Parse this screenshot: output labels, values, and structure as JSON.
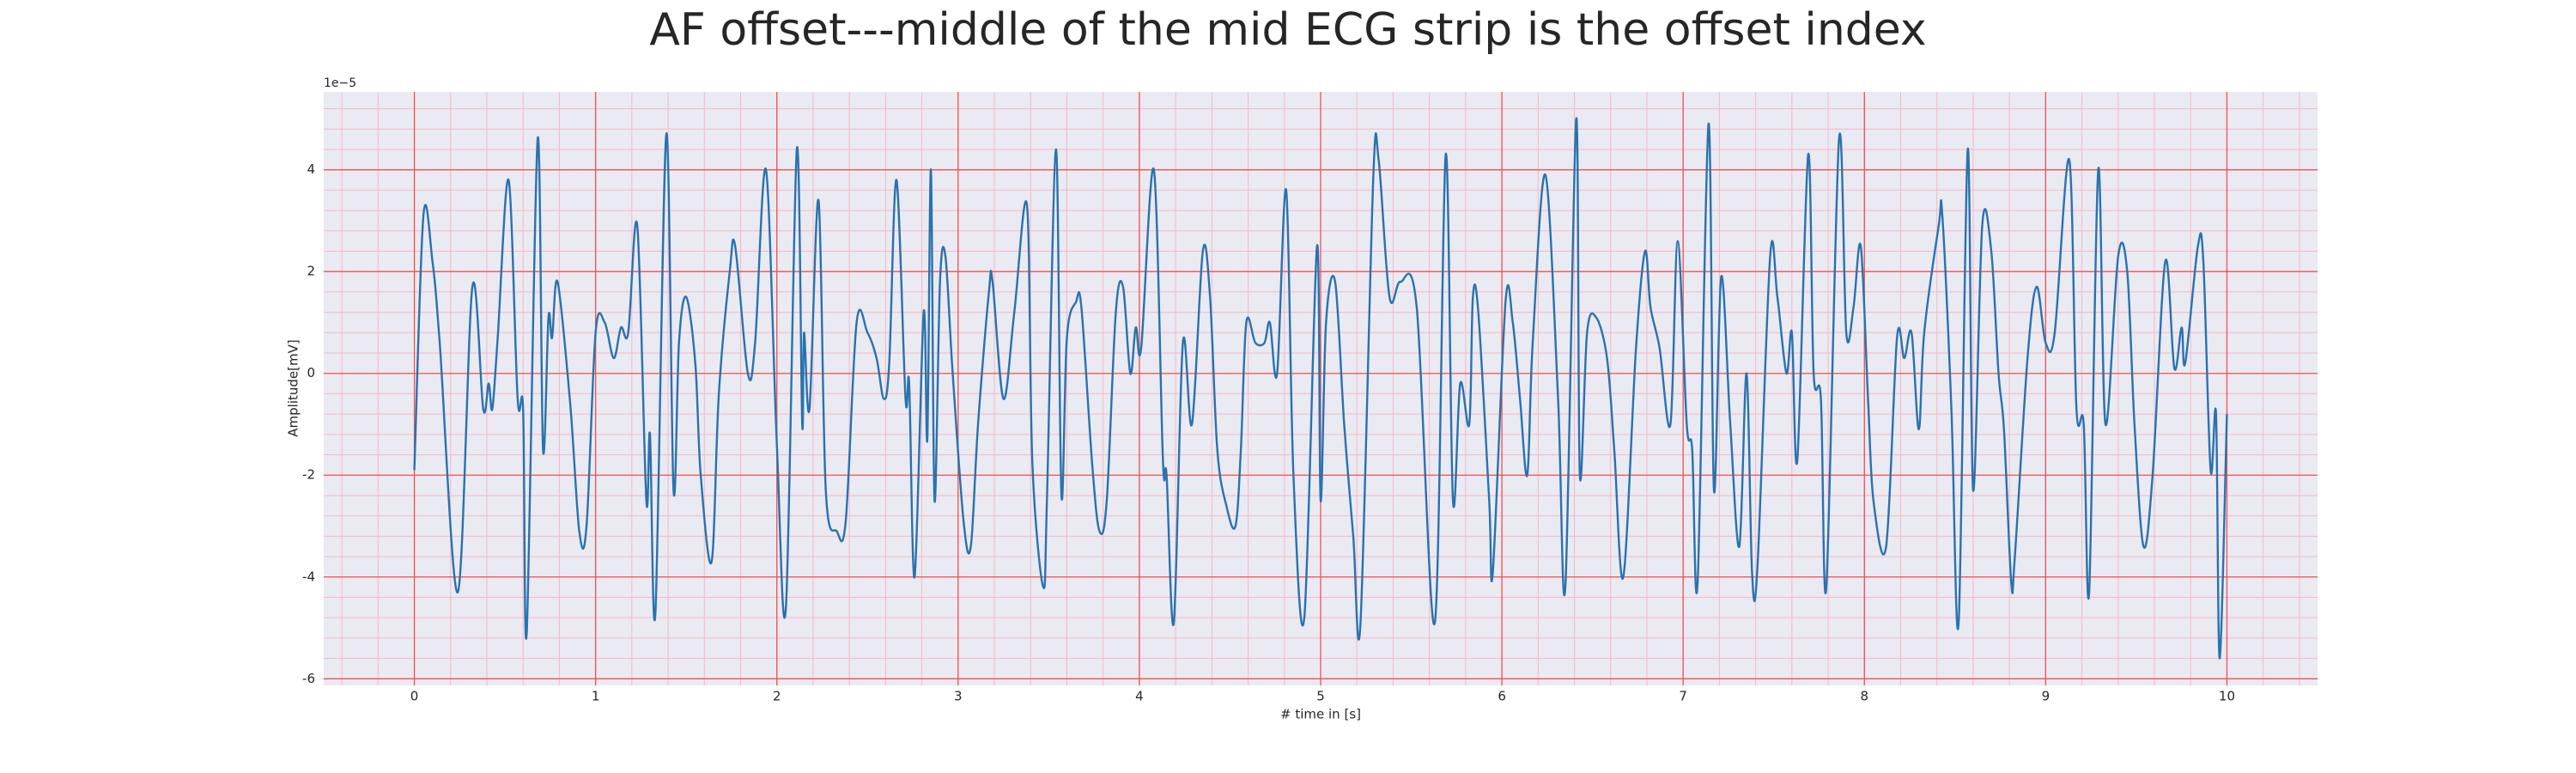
{
  "chart_data": {
    "type": "line",
    "title": "AF offset---middle of the mid ECG strip is the offset index",
    "x_label": "# time in [s]",
    "y_label": "Amplitude[mV]",
    "y_offset_label": "1e−5",
    "color": "#2a72ad",
    "xlim": [
      -0.5,
      10.5
    ],
    "ylim": [
      -6.13,
      5.53
    ],
    "xticks": [
      0,
      1,
      2,
      3,
      4,
      5,
      6,
      7,
      8,
      9,
      10
    ],
    "yticks": [
      -6,
      -4,
      -2,
      0,
      2,
      4
    ],
    "grid": true,
    "minor_grid_divisions": 5,
    "x": [
      0,
      0.05,
      0.1,
      0.14,
      0.24,
      0.32,
      0.38,
      0.41,
      0.43,
      0.46,
      0.52,
      0.57,
      0.6,
      0.62,
      0.68,
      0.71,
      0.74,
      0.76,
      0.79,
      0.86,
      0.91,
      0.95,
      1.0,
      1.05,
      1.1,
      1.14,
      1.18,
      1.23,
      1.28,
      1.3,
      1.33,
      1.39,
      1.43,
      1.46,
      1.5,
      1.55,
      1.58,
      1.64,
      1.68,
      1.74,
      1.77,
      1.84,
      1.88,
      1.94,
      2.0,
      2.05,
      2.11,
      2.14,
      2.15,
      2.18,
      2.23,
      2.27,
      2.33,
      2.38,
      2.44,
      2.5,
      2.55,
      2.59,
      2.62,
      2.66,
      2.71,
      2.73,
      2.76,
      2.81,
      2.83,
      2.85,
      2.87,
      2.9,
      2.93,
      2.97,
      3.03,
      3.07,
      3.11,
      3.17,
      3.19,
      3.25,
      3.31,
      3.38,
      3.41,
      3.47,
      3.49,
      3.54,
      3.57,
      3.6,
      3.65,
      3.68,
      3.74,
      3.78,
      3.82,
      3.87,
      3.91,
      3.95,
      3.98,
      4.01,
      4.08,
      4.13,
      4.15,
      4.19,
      4.24,
      4.29,
      4.35,
      4.39,
      4.43,
      4.48,
      4.53,
      4.56,
      4.59,
      4.64,
      4.69,
      4.72,
      4.76,
      4.81,
      4.85,
      4.91,
      4.98,
      5.0,
      5.03,
      5.08,
      5.13,
      5.18,
      5.22,
      5.29,
      5.32,
      5.38,
      5.44,
      5.53,
      5.63,
      5.69,
      5.73,
      5.77,
      5.82,
      5.84,
      5.87,
      5.93,
      5.95,
      6.02,
      6.06,
      6.1,
      6.14,
      6.17,
      6.24,
      6.31,
      6.35,
      6.41,
      6.43,
      6.47,
      6.52,
      6.58,
      6.62,
      6.67,
      6.74,
      6.79,
      6.82,
      6.87,
      6.93,
      6.97,
      7.02,
      7.05,
      7.08,
      7.14,
      7.17,
      7.21,
      7.26,
      7.31,
      7.35,
      7.38,
      7.41,
      7.48,
      7.52,
      7.57,
      7.6,
      7.63,
      7.69,
      7.72,
      7.76,
      7.79,
      7.86,
      7.9,
      7.94,
      7.98,
      8.02,
      8.05,
      8.12,
      8.18,
      8.22,
      8.26,
      8.3,
      8.33,
      8.41,
      8.43,
      8.48,
      8.52,
      8.57,
      8.6,
      8.65,
      8.7,
      8.74,
      8.77,
      8.81,
      8.83,
      8.9,
      8.95,
      9.0,
      9.05,
      9.13,
      9.17,
      9.21,
      9.24,
      9.29,
      9.33,
      9.4,
      9.45,
      9.49,
      9.54,
      9.59,
      9.66,
      9.71,
      9.75,
      9.77,
      9.84,
      9.87,
      9.91,
      9.94,
      9.96,
      10.0
    ],
    "values": [
      -1.9,
      3.1,
      2.2,
      0.6,
      -4.3,
      1.7,
      -0.7,
      -0.2,
      -0.7,
      0.7,
      3.8,
      -0.5,
      -0.7,
      -5.1,
      4.6,
      -1.5,
      1.1,
      0.7,
      1.8,
      -0.6,
      -3.1,
      -3.0,
      0.8,
      1.0,
      0.3,
      0.9,
      0.8,
      2.9,
      -2.5,
      -1.2,
      -4.7,
      4.7,
      -2.3,
      0.6,
      1.5,
      0.2,
      -2.0,
      -3.7,
      -0.4,
      2.0,
      2.5,
      0.0,
      0.6,
      4.0,
      -1.4,
      -4.6,
      4.4,
      -1.0,
      0.8,
      -0.7,
      3.4,
      -2.3,
      -3.1,
      -2.9,
      1.0,
      0.8,
      0.3,
      -0.5,
      0.2,
      3.8,
      -0.5,
      -0.2,
      -4.0,
      1.2,
      -1.3,
      4.0,
      -2.5,
      1.8,
      2.3,
      0.0,
      -2.9,
      -3.4,
      -1.0,
      1.6,
      1.8,
      -0.5,
      1.2,
      3.3,
      -1.8,
      -4.2,
      -2.5,
      4.4,
      -2.4,
      0.7,
      1.4,
      1.3,
      -1.8,
      -3.1,
      -2.5,
      1.2,
      1.7,
      0.0,
      0.9,
      0.5,
      4.0,
      -1.7,
      -2.0,
      -4.9,
      0.6,
      -1.0,
      2.4,
      1.5,
      -1.5,
      -2.6,
      -3.0,
      -1.5,
      1.0,
      0.6,
      0.6,
      1.0,
      0.0,
      3.6,
      -2.0,
      -4.8,
      2.5,
      -2.5,
      1.0,
      1.8,
      -1.0,
      -3.2,
      -4.9,
      3.8,
      4.2,
      1.5,
      1.8,
      1.3,
      -4.9,
      4.3,
      -2.5,
      -0.2,
      -1.0,
      1.5,
      1.2,
      -2.5,
      -3.9,
      1.4,
      1.0,
      -0.5,
      -2.0,
      0.6,
      3.9,
      -0.5,
      -4.2,
      5.0,
      -2.0,
      0.8,
      1.1,
      0.3,
      -1.5,
      -4.0,
      0.5,
      2.4,
      1.3,
      0.5,
      -1.0,
      2.6,
      -1.0,
      -1.5,
      -4.1,
      4.9,
      -2.3,
      1.9,
      -1.0,
      -3.4,
      0.0,
      -3.9,
      -3.8,
      2.3,
      1.5,
      0.0,
      0.8,
      -1.7,
      4.3,
      0.0,
      -0.5,
      -4.2,
      4.6,
      0.8,
      1.3,
      2.5,
      -0.5,
      -2.5,
      -3.4,
      0.7,
      0.3,
      0.8,
      -1.1,
      0.8,
      2.9,
      3.1,
      -0.7,
      -4.9,
      4.4,
      -2.3,
      2.9,
      2.4,
      0.0,
      -1.1,
      -4.1,
      -3.6,
      0.3,
      1.7,
      0.6,
      0.8,
      4.2,
      -0.7,
      -1.0,
      -4.3,
      4.0,
      -1.0,
      2.3,
      2.0,
      -1.0,
      -3.4,
      -2.0,
      2.2,
      0.1,
      0.9,
      0.2,
      2.5,
      2.2,
      -1.9,
      -0.8,
      -5.6,
      -0.8
    ]
  }
}
